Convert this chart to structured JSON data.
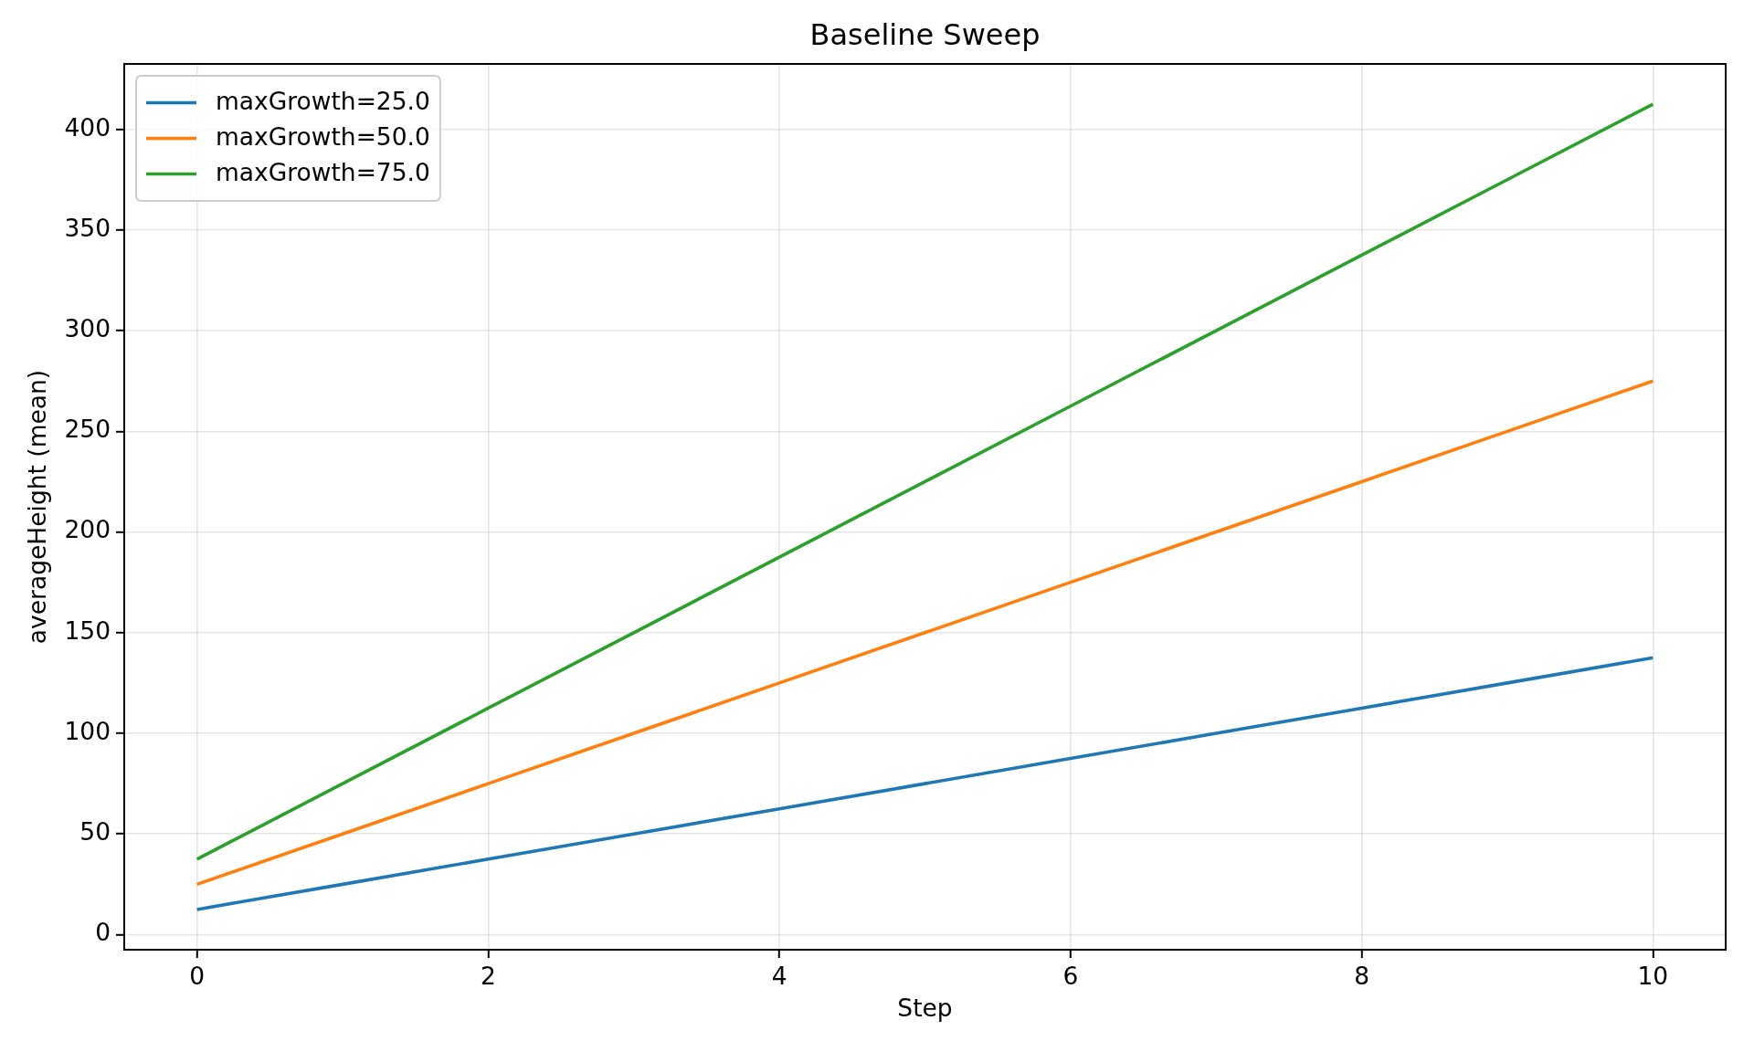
{
  "chart_data": {
    "type": "line",
    "title": "Baseline Sweep",
    "xlabel": "Step",
    "ylabel": "averageHeight (mean)",
    "x": [
      0,
      1,
      2,
      3,
      4,
      5,
      6,
      7,
      8,
      9,
      10
    ],
    "series": [
      {
        "name": "maxGrowth=25.0",
        "color": "#1f77b4",
        "values": [
          12.5,
          25,
          37.5,
          50,
          62.5,
          75,
          87.5,
          100,
          112.5,
          125,
          137.5
        ]
      },
      {
        "name": "maxGrowth=50.0",
        "color": "#ff7f0e",
        "values": [
          25,
          50,
          75,
          100,
          125,
          150,
          175,
          200,
          225,
          250,
          275
        ]
      },
      {
        "name": "maxGrowth=75.0",
        "color": "#2ca02c",
        "values": [
          37.5,
          75,
          112.5,
          150,
          187.5,
          225,
          262.5,
          300,
          337.5,
          375,
          412.5
        ]
      }
    ],
    "xlim": [
      -0.5,
      10.5
    ],
    "ylim": [
      -7.5,
      432.5
    ],
    "xticks": [
      0,
      2,
      4,
      6,
      8,
      10
    ],
    "yticks": [
      0,
      50,
      100,
      150,
      200,
      250,
      300,
      350,
      400
    ],
    "grid": true,
    "legend": "top left"
  }
}
